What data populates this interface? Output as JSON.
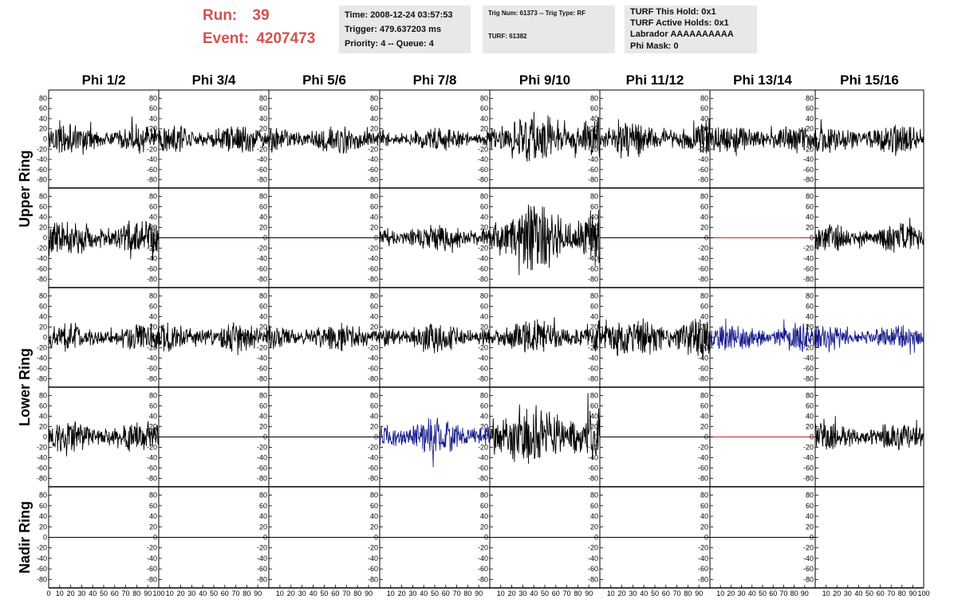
{
  "run_info": {
    "run_label": "Run:",
    "run_value": "39",
    "event_label": "Event:",
    "event_value": "4207473"
  },
  "time_box": {
    "time": "Time: 2008-12-24 03:57:53",
    "trigger": "Trigger: 479.637203 ms",
    "priority": "Priority: 4 -- Queue: 4"
  },
  "trig_box": {
    "trig_num": "Trig Num: 61373 -- Trig Type: RF",
    "turf": "TURF: 61382"
  },
  "turf_box": {
    "hold": "TURF This Hold: 0x1",
    "active": "TURF Active Holds: 0x1",
    "labrador": "Labrador AAAAAAAAAA",
    "phi_mask": "Phi Mask: 0"
  },
  "colors": {
    "accent_red": "#d4504f",
    "trace_black": "#000000",
    "trace_blue": "#1a1f8c",
    "trace_red": "#cc2222",
    "box_gray": "#e8e8e8"
  },
  "chart_data": {
    "type": "line",
    "columns": [
      "Phi 1/2",
      "Phi 3/4",
      "Phi 5/6",
      "Phi 7/8",
      "Phi 9/10",
      "Phi 11/12",
      "Phi 13/14",
      "Phi 15/16"
    ],
    "rows": [
      "Upper Ring",
      "Upper Ring",
      "Lower Ring",
      "Lower Ring",
      "Nadir Ring"
    ],
    "ring_labels": [
      "Upper Ring",
      "Lower Ring",
      "Nadir Ring"
    ],
    "xlim": [
      0,
      100
    ],
    "ylim": [
      -90,
      90
    ],
    "x_ticks": [
      10,
      20,
      30,
      40,
      50,
      60,
      70,
      80,
      90
    ],
    "x_ticks_first": [
      0,
      10,
      20,
      30,
      40,
      50,
      60,
      70,
      80,
      90,
      100
    ],
    "x_ticks_last": [
      10,
      20,
      30,
      40,
      50,
      60,
      70,
      80,
      90,
      100
    ],
    "y_ticks": [
      80,
      60,
      40,
      20,
      0,
      -20,
      -40,
      -60,
      -80
    ],
    "num_samples": 260,
    "panel_modes": [
      [
        "noise",
        "noise",
        "noise",
        "noise",
        "noise",
        "noise",
        "noise",
        "noise"
      ],
      [
        "noise",
        "flat",
        "flat",
        "noise",
        "noise",
        "flat",
        "flat",
        "noise"
      ],
      [
        "noise",
        "noise",
        "noise",
        "noise",
        "noise",
        "noise",
        "noise",
        "noise"
      ],
      [
        "noise",
        "flat",
        "flat",
        "noise",
        "noise",
        "flat",
        "flat",
        "noise"
      ],
      [
        "flat",
        "flat",
        "flat",
        "flat",
        "flat",
        "flat",
        "flat",
        "none"
      ]
    ],
    "panel_colors": [
      [
        "black",
        "black",
        "black",
        "black",
        "black",
        "black",
        "black",
        "black"
      ],
      [
        "black",
        "black",
        "black",
        "black",
        "black",
        "black",
        "red",
        "black"
      ],
      [
        "black",
        "black",
        "black",
        "black",
        "black",
        "black",
        "blue",
        "blue"
      ],
      [
        "black",
        "black",
        "black",
        "blue",
        "black",
        "black",
        "red",
        "black"
      ],
      [
        "black",
        "black",
        "black",
        "black",
        "black",
        "black",
        "black",
        "black"
      ]
    ],
    "panel_amplitudes": [
      [
        14,
        14,
        14,
        12,
        26,
        17,
        15,
        15
      ],
      [
        18,
        0,
        0,
        14,
        32,
        0,
        0,
        14
      ],
      [
        13,
        14,
        14,
        14,
        18,
        22,
        14,
        12
      ],
      [
        15,
        0,
        0,
        17,
        32,
        0,
        0,
        14
      ],
      [
        0,
        0,
        0,
        0,
        0,
        0,
        0,
        0
      ]
    ]
  }
}
